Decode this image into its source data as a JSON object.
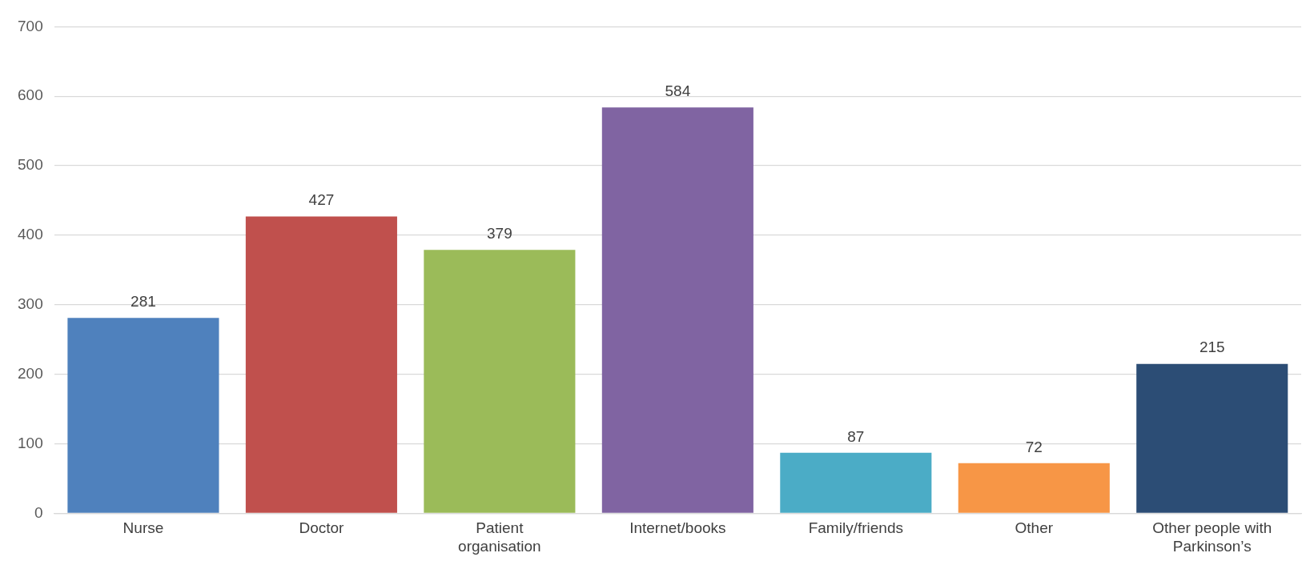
{
  "chart_data": {
    "type": "bar",
    "categories": [
      "Nurse",
      "Doctor",
      "Patient organisation",
      "Internet/books",
      "Family/friends",
      "Other",
      "Other people with Parkinson’s"
    ],
    "values": [
      281,
      427,
      379,
      584,
      87,
      72,
      215
    ],
    "colors": [
      "#4f81bd",
      "#c0504d",
      "#9bbb59",
      "#8064a2",
      "#4bacc6",
      "#f79646",
      "#2c4d75"
    ],
    "ylim": [
      0,
      700
    ],
    "yticks": [
      0,
      100,
      200,
      300,
      400,
      500,
      600,
      700
    ],
    "grid": "y",
    "legend": false,
    "data_labels": true
  }
}
